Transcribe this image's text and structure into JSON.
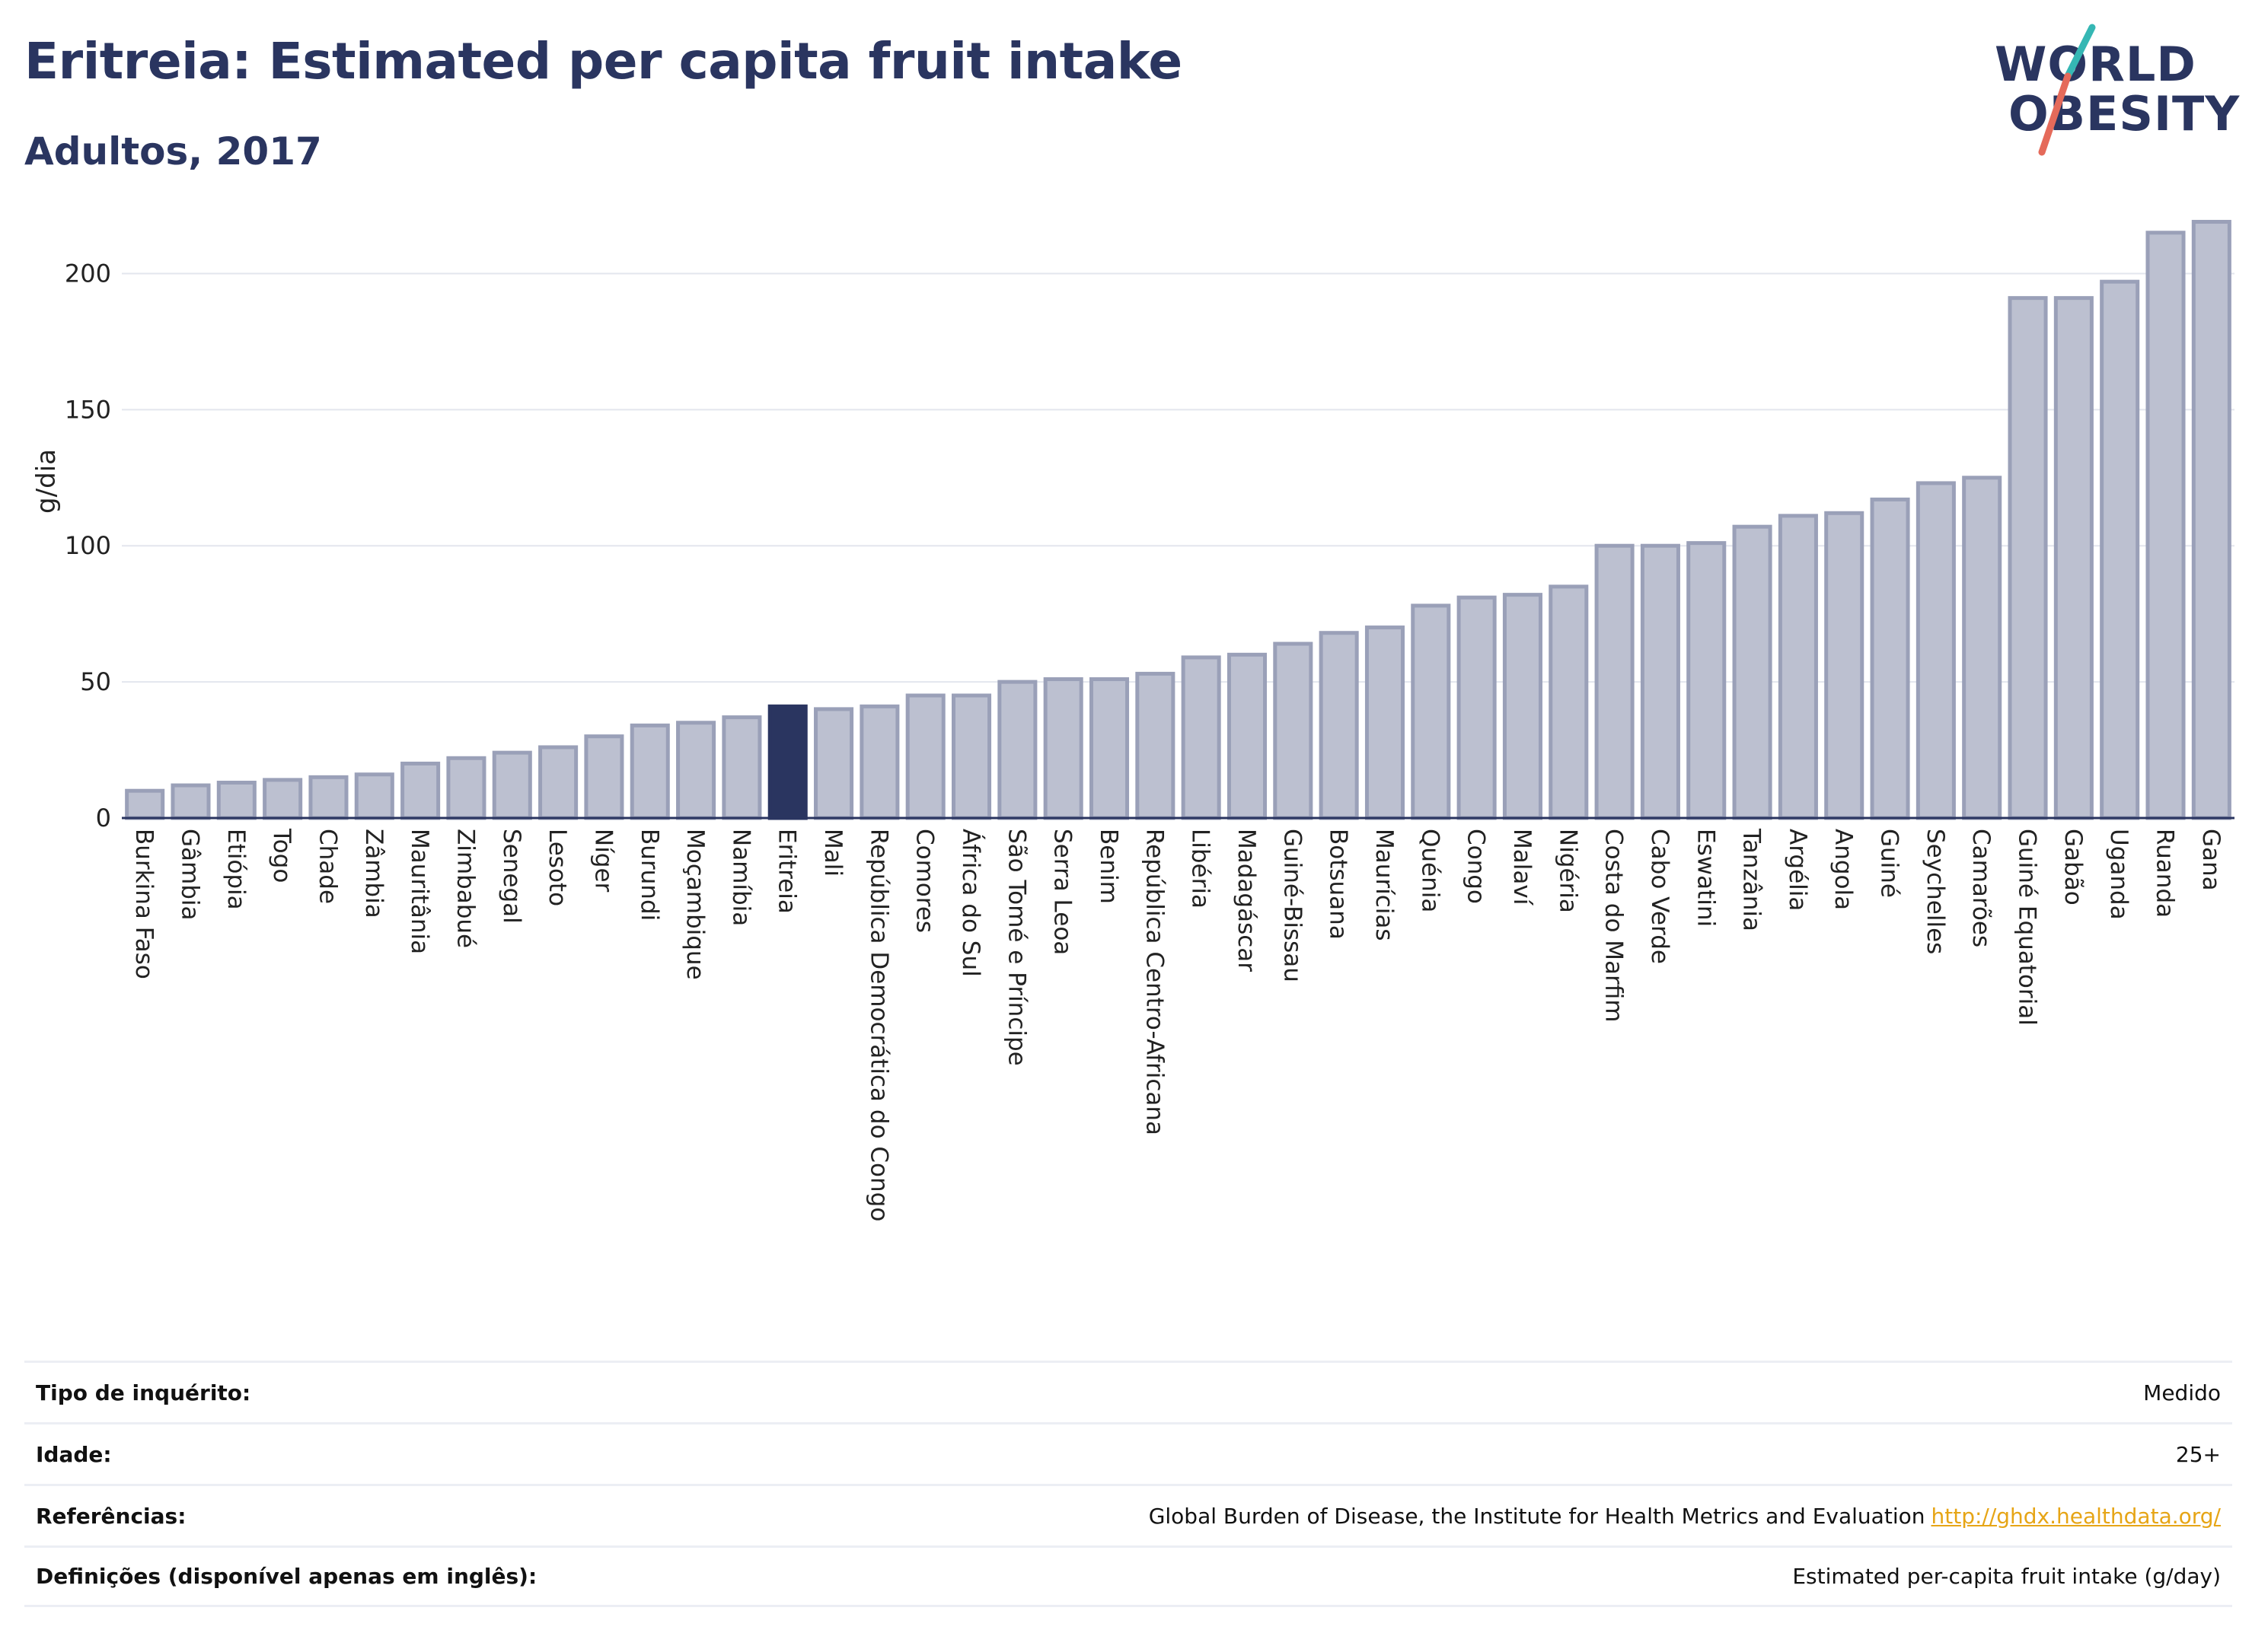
{
  "header": {
    "title": "Eritreia: Estimated per capita fruit intake",
    "subtitle": "Adultos, 2017"
  },
  "logo": {
    "line1": "WORLD",
    "line2": "OBESITY",
    "accent_colors": [
      "#35b7b4",
      "#e56a5a"
    ]
  },
  "chart_data": {
    "type": "bar",
    "ylabel": "g/dia",
    "ylim": [
      0,
      225
    ],
    "yticks": [
      0,
      50,
      100,
      150,
      200
    ],
    "grid": true,
    "highlight": "Eritreia",
    "colors": {
      "bar": "#bcc0d0",
      "bar_edge": "#9aa0b8",
      "highlight": "#2a3560"
    },
    "categories": [
      "Burkina Faso",
      "Gâmbia",
      "Etiópia",
      "Togo",
      "Chade",
      "Zâmbia",
      "Mauritânia",
      "Zimbabué",
      "Senegal",
      "Lesoto",
      "Níger",
      "Burundi",
      "Moçambique",
      "Namíbia",
      "Eritreia",
      "Mali",
      "República Democrática do Congo",
      "Comores",
      "África do Sul",
      "São Tomé e Príncipe",
      "Serra Leoa",
      "Benim",
      "República Centro-Africana",
      "Libéria",
      "Madagáscar",
      "Guiné-Bissau",
      "Botsuana",
      "Maurícias",
      "Quénia",
      "Congo",
      "Malaví",
      "Nigéria",
      "Costa do Marfim",
      "Cabo Verde",
      "Eswatini",
      "Tanzânia",
      "Argélia",
      "Angola",
      "Guiné",
      "Seychelles",
      "Camarões",
      "Guiné Equatorial",
      "Gabão",
      "Uganda",
      "Ruanda",
      "Gana"
    ],
    "values": [
      10,
      12,
      13,
      14,
      15,
      16,
      20,
      22,
      24,
      26,
      30,
      34,
      35,
      37,
      41,
      40,
      41,
      45,
      45,
      50,
      51,
      51,
      53,
      59,
      60,
      64,
      68,
      70,
      78,
      81,
      82,
      85,
      100,
      100,
      101,
      107,
      111,
      112,
      117,
      123,
      125,
      191,
      191,
      197,
      215,
      219
    ]
  },
  "info_table": [
    {
      "key": "Tipo de inquérito:",
      "value": "Medido"
    },
    {
      "key": "Idade:",
      "value": "25+"
    },
    {
      "key": "Referências:",
      "value": "Global Burden of Disease, the Institute for Health Metrics and Evaluation",
      "link": "http://ghdx.healthdata.org/"
    },
    {
      "key": "Definições (disponível apenas em inglês):",
      "value": "Estimated per-capita fruit intake (g/day)"
    }
  ]
}
